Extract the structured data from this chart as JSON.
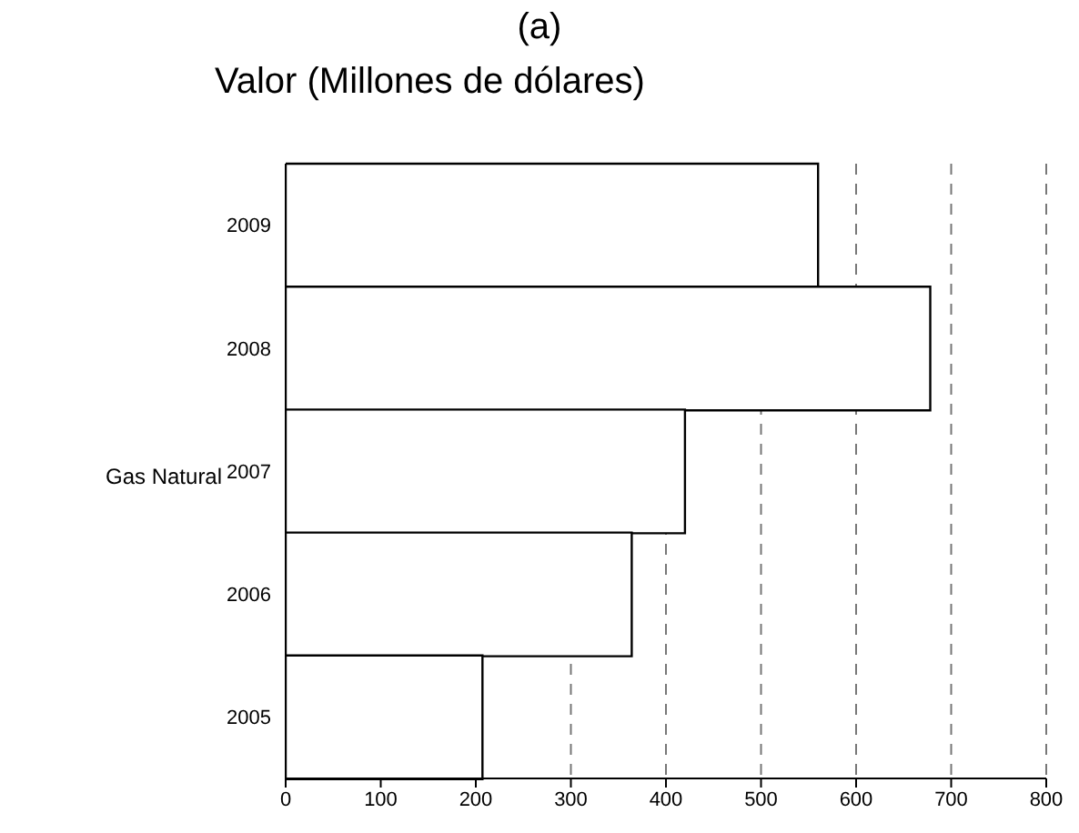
{
  "chart_data": {
    "type": "bar",
    "orientation": "horizontal",
    "title": "(a)",
    "subtitle": "Valor (Millones de dólares)",
    "ylabel": "Gas Natural",
    "categories": [
      "2009",
      "2008",
      "2007",
      "2006",
      "2005"
    ],
    "values": [
      560,
      678,
      420,
      364,
      207
    ],
    "color": "#ffffff",
    "xlim": [
      0,
      800
    ],
    "xticks": [
      0,
      100,
      200,
      300,
      400,
      500,
      600,
      700,
      800
    ],
    "grid": "x"
  }
}
